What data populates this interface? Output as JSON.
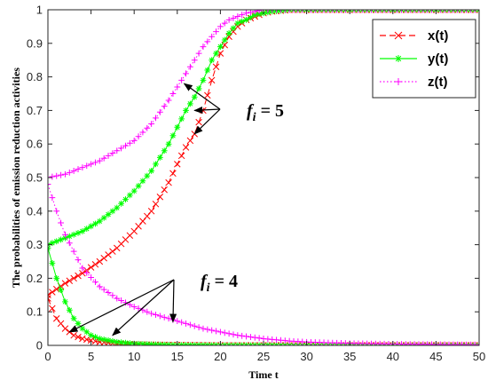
{
  "chart_data": {
    "type": "line",
    "xlabel": "Time t",
    "ylabel": "The probabilities of emission reduction activities",
    "xlim": [
      0,
      50
    ],
    "ylim": [
      0,
      1
    ],
    "xticks": [
      0,
      5,
      10,
      15,
      20,
      25,
      30,
      35,
      40,
      45,
      50
    ],
    "yticks": [
      0,
      0.1,
      0.2,
      0.3,
      0.4,
      0.5,
      0.6,
      0.7,
      0.8,
      0.9,
      1
    ],
    "legend_position": "top-right",
    "grid": false,
    "series": [
      {
        "name": "x(t)",
        "scenario": "f_i = 5",
        "color": "#ff0000",
        "line": "dashed",
        "marker": "x",
        "x": [
          0,
          2,
          4,
          6,
          8,
          10,
          12,
          14,
          15,
          16,
          17,
          18,
          19,
          20,
          21,
          22,
          23,
          24,
          25,
          26,
          28,
          30,
          35,
          40,
          45,
          50
        ],
        "y": [
          0.15,
          0.185,
          0.215,
          0.25,
          0.29,
          0.34,
          0.4,
          0.485,
          0.54,
          0.59,
          0.63,
          0.7,
          0.79,
          0.87,
          0.92,
          0.95,
          0.97,
          0.98,
          0.99,
          0.995,
          1.0,
          1.0,
          1.0,
          1.0,
          1.0,
          1.0
        ]
      },
      {
        "name": "y(t)",
        "scenario": "f_i = 5",
        "color": "#00ff00",
        "line": "solid",
        "marker": "asterisk",
        "x": [
          0,
          1,
          2,
          4,
          6,
          8,
          10,
          12,
          14,
          15,
          16,
          17,
          18,
          19,
          20,
          21,
          22,
          23,
          24,
          25,
          26,
          28,
          30,
          35,
          40,
          45,
          50
        ],
        "y": [
          0.3,
          0.31,
          0.32,
          0.34,
          0.37,
          0.41,
          0.46,
          0.52,
          0.6,
          0.65,
          0.7,
          0.74,
          0.79,
          0.85,
          0.89,
          0.93,
          0.96,
          0.97,
          0.985,
          0.99,
          0.995,
          1.0,
          1.0,
          1.0,
          1.0,
          1.0,
          1.0
        ]
      },
      {
        "name": "z(t)",
        "scenario": "f_i = 5",
        "color": "#ff00ff",
        "line": "dotted",
        "marker": "plus",
        "x": [
          0,
          2,
          4,
          6,
          8,
          10,
          12,
          14,
          15,
          16,
          17,
          18,
          19,
          20,
          21,
          22,
          23,
          24,
          25,
          26,
          28,
          30,
          35,
          40,
          45,
          50
        ],
        "y": [
          0.5,
          0.51,
          0.53,
          0.55,
          0.58,
          0.61,
          0.66,
          0.73,
          0.77,
          0.81,
          0.85,
          0.89,
          0.92,
          0.95,
          0.97,
          0.98,
          0.99,
          0.995,
          1.0,
          1.0,
          1.0,
          1.0,
          1.0,
          1.0,
          1.0,
          1.0
        ]
      },
      {
        "name": "x(t)",
        "scenario": "f_i = 4",
        "color": "#ff0000",
        "line": "dashed",
        "marker": "x",
        "x": [
          0,
          1,
          2,
          3,
          4,
          5,
          6,
          7,
          8,
          10,
          12,
          15,
          20,
          25,
          30,
          40,
          50
        ],
        "y": [
          0.14,
          0.08,
          0.05,
          0.03,
          0.02,
          0.015,
          0.01,
          0.008,
          0.005,
          0.003,
          0.002,
          0.001,
          0.0,
          0.0,
          0.0,
          0.0,
          0.0
        ]
      },
      {
        "name": "y(t)",
        "scenario": "f_i = 4",
        "color": "#00ff00",
        "line": "solid",
        "marker": "asterisk",
        "x": [
          0,
          1,
          2,
          3,
          4,
          5,
          6,
          7,
          8,
          10,
          12,
          15,
          20,
          25,
          30,
          40,
          50
        ],
        "y": [
          0.29,
          0.2,
          0.13,
          0.08,
          0.05,
          0.03,
          0.02,
          0.015,
          0.01,
          0.005,
          0.003,
          0.001,
          0.0,
          0.0,
          0.0,
          0.0,
          0.0
        ]
      },
      {
        "name": "z(t)",
        "scenario": "f_i = 4",
        "color": "#ff00ff",
        "line": "dotted",
        "marker": "plus",
        "x": [
          0,
          1,
          2,
          3,
          4,
          6,
          8,
          10,
          12,
          14,
          16,
          18,
          20,
          22,
          25,
          28,
          30,
          35,
          40,
          45,
          50
        ],
        "y": [
          0.48,
          0.4,
          0.33,
          0.28,
          0.23,
          0.175,
          0.14,
          0.115,
          0.095,
          0.08,
          0.065,
          0.05,
          0.04,
          0.03,
          0.02,
          0.013,
          0.01,
          0.006,
          0.004,
          0.003,
          0.002
        ]
      }
    ],
    "annotations": [
      {
        "label": "f",
        "subscript": "i",
        "value": " = 5",
        "targets": [
          [
            15.8,
            0.78
          ],
          [
            17.0,
            0.7
          ],
          [
            17.0,
            0.63
          ]
        ]
      },
      {
        "label": "f",
        "subscript": "i",
        "value": " = 4",
        "targets": [
          [
            2.5,
            0.04
          ],
          [
            7.5,
            0.03
          ],
          [
            14.5,
            0.07
          ]
        ]
      }
    ]
  }
}
